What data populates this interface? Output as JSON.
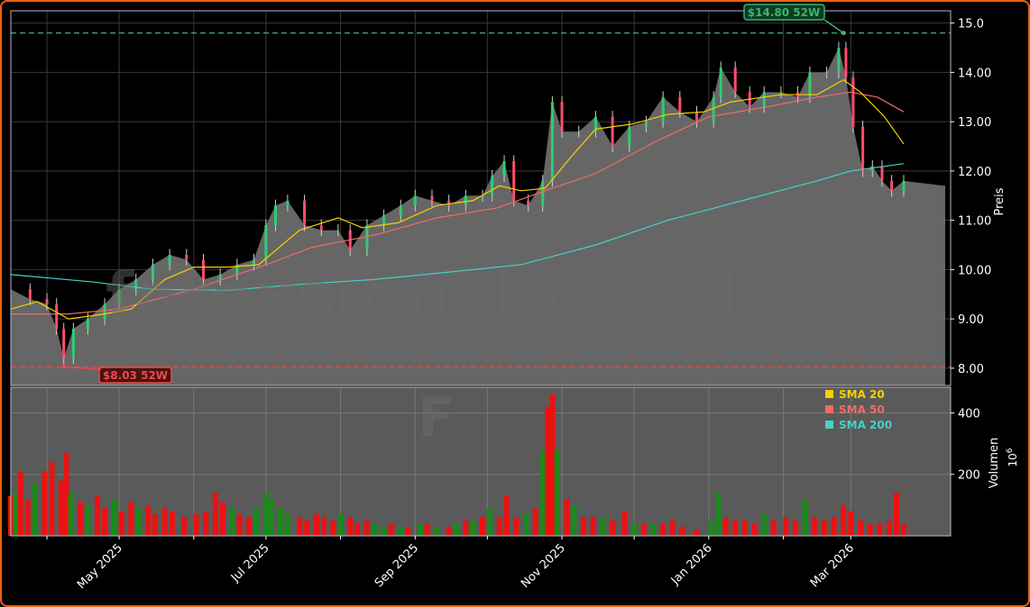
{
  "chart_data": {
    "type": "candlestick",
    "watermark": "forexsignale.trade",
    "watermark_letter": "F",
    "price_axis": {
      "label": "Preis",
      "ylim": [
        7.65,
        15.25
      ],
      "ticks": [
        8.0,
        9.0,
        10.0,
        11.0,
        12.0,
        13.0,
        14.0,
        15.0
      ],
      "tick_labels": [
        "8.00",
        "9.00",
        "10.00",
        "11.00",
        "12.00",
        "13.00",
        "14.00",
        "15.0"
      ]
    },
    "volume_axis": {
      "label": "Volumen",
      "exponent": "10",
      "exponent_power": "6",
      "ylim": [
        0,
        460
      ],
      "ticks": [
        200,
        400
      ],
      "tick_labels": [
        "200",
        "400"
      ]
    },
    "x_axis": {
      "start": "2025-03-17",
      "end": "2026-03-23",
      "ticks": [
        {
          "date": "2025-05-01",
          "label": "May 2025"
        },
        {
          "date": "2025-07-01",
          "label": "Jul 2025"
        },
        {
          "date": "2025-09-01",
          "label": "Sep 2025"
        },
        {
          "date": "2025-11-01",
          "label": "Nov 2025"
        },
        {
          "date": "2026-01-01",
          "label": "Jan 2026"
        },
        {
          "date": "2026-03-01",
          "label": "Mar 2026"
        }
      ],
      "minor_ticks": [
        "2025-04-01",
        "2025-06-01",
        "2025-08-01",
        "2025-10-01",
        "2025-12-01",
        "2026-02-01"
      ]
    },
    "high_52w": {
      "value": 14.8,
      "date": "2026-02-26",
      "label": "$14.80 52W",
      "color": "#3cb371"
    },
    "low_52w": {
      "value": 8.03,
      "date": "2025-04-08",
      "label": "$8.03 52W",
      "color": "#e74c4c"
    },
    "last_price": 11.7,
    "legend": [
      {
        "label": "SMA 20",
        "color": "#f5d000"
      },
      {
        "label": "SMA 50",
        "color": "#f06a6a"
      },
      {
        "label": "SMA 200",
        "color": "#45d0c8"
      }
    ],
    "close_series": [
      [
        "2025-03-17",
        9.6
      ],
      [
        "2025-03-25",
        9.4
      ],
      [
        "2025-04-01",
        9.3
      ],
      [
        "2025-04-05",
        8.8
      ],
      [
        "2025-04-08",
        8.2
      ],
      [
        "2025-04-12",
        8.8
      ],
      [
        "2025-04-18",
        9.0
      ],
      [
        "2025-04-25",
        9.3
      ],
      [
        "2025-05-01",
        9.6
      ],
      [
        "2025-05-08",
        9.8
      ],
      [
        "2025-05-15",
        10.1
      ],
      [
        "2025-05-22",
        10.3
      ],
      [
        "2025-05-29",
        10.2
      ],
      [
        "2025-06-05",
        9.8
      ],
      [
        "2025-06-12",
        9.9
      ],
      [
        "2025-06-19",
        10.1
      ],
      [
        "2025-06-26",
        10.2
      ],
      [
        "2025-07-01",
        10.9
      ],
      [
        "2025-07-05",
        11.3
      ],
      [
        "2025-07-10",
        11.4
      ],
      [
        "2025-07-17",
        10.9
      ],
      [
        "2025-07-24",
        10.8
      ],
      [
        "2025-07-31",
        10.8
      ],
      [
        "2025-08-05",
        10.4
      ],
      [
        "2025-08-12",
        10.9
      ],
      [
        "2025-08-19",
        11.1
      ],
      [
        "2025-08-26",
        11.3
      ],
      [
        "2025-09-01",
        11.5
      ],
      [
        "2025-09-08",
        11.4
      ],
      [
        "2025-09-15",
        11.3
      ],
      [
        "2025-09-22",
        11.5
      ],
      [
        "2025-09-29",
        11.5
      ],
      [
        "2025-10-03",
        11.9
      ],
      [
        "2025-10-08",
        12.2
      ],
      [
        "2025-10-12",
        11.4
      ],
      [
        "2025-10-18",
        11.3
      ],
      [
        "2025-10-24",
        11.8
      ],
      [
        "2025-10-28",
        13.4
      ],
      [
        "2025-11-01",
        12.8
      ],
      [
        "2025-11-08",
        12.8
      ],
      [
        "2025-11-15",
        13.1
      ],
      [
        "2025-11-22",
        12.5
      ],
      [
        "2025-11-29",
        12.9
      ],
      [
        "2025-12-06",
        13.0
      ],
      [
        "2025-12-13",
        13.5
      ],
      [
        "2025-12-20",
        13.2
      ],
      [
        "2025-12-27",
        13.0
      ],
      [
        "2026-01-03",
        13.5
      ],
      [
        "2026-01-06",
        14.1
      ],
      [
        "2026-01-12",
        13.6
      ],
      [
        "2026-01-18",
        13.3
      ],
      [
        "2026-01-24",
        13.6
      ],
      [
        "2026-01-31",
        13.6
      ],
      [
        "2026-02-07",
        13.5
      ],
      [
        "2026-02-12",
        14.0
      ],
      [
        "2026-02-19",
        14.0
      ],
      [
        "2026-02-24",
        14.5
      ],
      [
        "2026-02-27",
        13.9
      ],
      [
        "2026-03-02",
        12.9
      ],
      [
        "2026-03-06",
        12.0
      ],
      [
        "2026-03-10",
        12.1
      ],
      [
        "2026-03-14",
        11.8
      ],
      [
        "2026-03-18",
        11.6
      ],
      [
        "2026-03-23",
        11.8
      ]
    ],
    "sma20": [
      [
        "2025-03-17",
        9.2
      ],
      [
        "2025-03-28",
        9.35
      ],
      [
        "2025-04-10",
        9.0
      ],
      [
        "2025-04-25",
        9.1
      ],
      [
        "2025-05-06",
        9.2
      ],
      [
        "2025-05-20",
        9.8
      ],
      [
        "2025-06-01",
        10.05
      ],
      [
        "2025-06-15",
        10.05
      ],
      [
        "2025-06-28",
        10.1
      ],
      [
        "2025-07-15",
        10.8
      ],
      [
        "2025-07-31",
        11.05
      ],
      [
        "2025-08-10",
        10.85
      ],
      [
        "2025-08-25",
        10.95
      ],
      [
        "2025-09-10",
        11.3
      ],
      [
        "2025-09-25",
        11.4
      ],
      [
        "2025-10-06",
        11.7
      ],
      [
        "2025-10-15",
        11.6
      ],
      [
        "2025-10-25",
        11.65
      ],
      [
        "2025-11-05",
        12.3
      ],
      [
        "2025-11-15",
        12.85
      ],
      [
        "2025-11-30",
        12.95
      ],
      [
        "2025-12-15",
        13.15
      ],
      [
        "2025-12-30",
        13.2
      ],
      [
        "2026-01-10",
        13.4
      ],
      [
        "2026-01-31",
        13.55
      ],
      [
        "2026-02-15",
        13.55
      ],
      [
        "2026-02-26",
        13.85
      ],
      [
        "2026-03-05",
        13.6
      ],
      [
        "2026-03-15",
        13.1
      ],
      [
        "2026-03-23",
        12.55
      ]
    ],
    "sma50": [
      [
        "2025-03-17",
        9.1
      ],
      [
        "2025-04-10",
        9.1
      ],
      [
        "2025-05-01",
        9.2
      ],
      [
        "2025-06-01",
        9.6
      ],
      [
        "2025-07-01",
        10.1
      ],
      [
        "2025-07-20",
        10.45
      ],
      [
        "2025-08-15",
        10.7
      ],
      [
        "2025-09-10",
        11.05
      ],
      [
        "2025-10-05",
        11.25
      ],
      [
        "2025-10-25",
        11.6
      ],
      [
        "2025-11-15",
        11.95
      ],
      [
        "2025-12-10",
        12.6
      ],
      [
        "2026-01-01",
        13.1
      ],
      [
        "2026-01-25",
        13.3
      ],
      [
        "2026-02-15",
        13.5
      ],
      [
        "2026-03-01",
        13.6
      ],
      [
        "2026-03-12",
        13.5
      ],
      [
        "2026-03-23",
        13.2
      ]
    ],
    "sma200": [
      [
        "2025-03-17",
        9.9
      ],
      [
        "2025-04-20",
        9.75
      ],
      [
        "2025-05-15",
        9.6
      ],
      [
        "2025-06-15",
        9.58
      ],
      [
        "2025-07-15",
        9.7
      ],
      [
        "2025-08-15",
        9.8
      ],
      [
        "2025-09-15",
        9.95
      ],
      [
        "2025-10-15",
        10.1
      ],
      [
        "2025-11-15",
        10.5
      ],
      [
        "2025-12-15",
        11.0
      ],
      [
        "2026-01-15",
        11.4
      ],
      [
        "2026-02-15",
        11.8
      ],
      [
        "2026-03-01",
        12.0
      ],
      [
        "2026-03-23",
        12.15
      ]
    ],
    "volume": {
      "up_color": "#1a8a1a",
      "down_color": "#ee1111",
      "bars": [
        [
          "2025-03-17",
          130,
          "down"
        ],
        [
          "2025-03-19",
          140,
          "up"
        ],
        [
          "2025-03-21",
          210,
          "down"
        ],
        [
          "2025-03-24",
          120,
          "down"
        ],
        [
          "2025-03-27",
          170,
          "up"
        ],
        [
          "2025-03-31",
          210,
          "down"
        ],
        [
          "2025-04-03",
          240,
          "down"
        ],
        [
          "2025-04-07",
          180,
          "down"
        ],
        [
          "2025-04-09",
          270,
          "down"
        ],
        [
          "2025-04-11",
          140,
          "up"
        ],
        [
          "2025-04-15",
          110,
          "down"
        ],
        [
          "2025-04-18",
          100,
          "up"
        ],
        [
          "2025-04-22",
          130,
          "down"
        ],
        [
          "2025-04-25",
          90,
          "down"
        ],
        [
          "2025-04-29",
          120,
          "up"
        ],
        [
          "2025-05-02",
          80,
          "down"
        ],
        [
          "2025-05-06",
          110,
          "down"
        ],
        [
          "2025-05-09",
          90,
          "up"
        ],
        [
          "2025-05-13",
          100,
          "down"
        ],
        [
          "2025-05-16",
          70,
          "down"
        ],
        [
          "2025-05-20",
          90,
          "down"
        ],
        [
          "2025-05-23",
          80,
          "down"
        ],
        [
          "2025-05-28",
          60,
          "down"
        ],
        [
          "2025-06-02",
          70,
          "down"
        ],
        [
          "2025-06-06",
          80,
          "down"
        ],
        [
          "2025-06-10",
          140,
          "down"
        ],
        [
          "2025-06-13",
          110,
          "down"
        ],
        [
          "2025-06-17",
          90,
          "up"
        ],
        [
          "2025-06-20",
          70,
          "down"
        ],
        [
          "2025-06-24",
          60,
          "down"
        ],
        [
          "2025-06-27",
          90,
          "up"
        ],
        [
          "2025-07-01",
          140,
          "up"
        ],
        [
          "2025-07-03",
          120,
          "up"
        ],
        [
          "2025-07-07",
          90,
          "up"
        ],
        [
          "2025-07-10",
          70,
          "up"
        ],
        [
          "2025-07-15",
          60,
          "down"
        ],
        [
          "2025-07-18",
          50,
          "down"
        ],
        [
          "2025-07-22",
          70,
          "down"
        ],
        [
          "2025-07-25",
          60,
          "down"
        ],
        [
          "2025-07-29",
          50,
          "down"
        ],
        [
          "2025-08-01",
          70,
          "up"
        ],
        [
          "2025-08-05",
          60,
          "down"
        ],
        [
          "2025-08-08",
          40,
          "down"
        ],
        [
          "2025-08-12",
          50,
          "down"
        ],
        [
          "2025-08-15",
          40,
          "up"
        ],
        [
          "2025-08-19",
          30,
          "up"
        ],
        [
          "2025-08-22",
          40,
          "down"
        ],
        [
          "2025-08-26",
          30,
          "up"
        ],
        [
          "2025-08-29",
          30,
          "down"
        ],
        [
          "2025-09-03",
          40,
          "up"
        ],
        [
          "2025-09-06",
          40,
          "down"
        ],
        [
          "2025-09-10",
          30,
          "up"
        ],
        [
          "2025-09-15",
          30,
          "down"
        ],
        [
          "2025-09-18",
          40,
          "up"
        ],
        [
          "2025-09-22",
          50,
          "down"
        ],
        [
          "2025-09-25",
          50,
          "up"
        ],
        [
          "2025-09-29",
          60,
          "down"
        ],
        [
          "2025-10-02",
          90,
          "up"
        ],
        [
          "2025-10-06",
          60,
          "down"
        ],
        [
          "2025-10-09",
          130,
          "down"
        ],
        [
          "2025-10-13",
          60,
          "down"
        ],
        [
          "2025-10-17",
          70,
          "up"
        ],
        [
          "2025-10-21",
          90,
          "down"
        ],
        [
          "2025-10-24",
          280,
          "up"
        ],
        [
          "2025-10-26",
          420,
          "down"
        ],
        [
          "2025-10-28",
          460,
          "down"
        ],
        [
          "2025-10-30",
          280,
          "up"
        ],
        [
          "2025-11-03",
          120,
          "down"
        ],
        [
          "2025-11-06",
          100,
          "up"
        ],
        [
          "2025-11-10",
          60,
          "down"
        ],
        [
          "2025-11-14",
          60,
          "down"
        ],
        [
          "2025-11-18",
          60,
          "up"
        ],
        [
          "2025-11-22",
          50,
          "down"
        ],
        [
          "2025-11-27",
          80,
          "down"
        ],
        [
          "2025-12-01",
          40,
          "up"
        ],
        [
          "2025-12-05",
          40,
          "down"
        ],
        [
          "2025-12-09",
          40,
          "up"
        ],
        [
          "2025-12-13",
          40,
          "down"
        ],
        [
          "2025-12-17",
          50,
          "down"
        ],
        [
          "2025-12-21",
          30,
          "down"
        ],
        [
          "2025-12-27",
          20,
          "down"
        ],
        [
          "2026-01-02",
          50,
          "up"
        ],
        [
          "2026-01-05",
          140,
          "up"
        ],
        [
          "2026-01-08",
          60,
          "down"
        ],
        [
          "2026-01-12",
          50,
          "down"
        ],
        [
          "2026-01-16",
          50,
          "down"
        ],
        [
          "2026-01-20",
          40,
          "down"
        ],
        [
          "2026-01-24",
          70,
          "up"
        ],
        [
          "2026-01-28",
          50,
          "down"
        ],
        [
          "2026-02-02",
          60,
          "down"
        ],
        [
          "2026-02-06",
          50,
          "down"
        ],
        [
          "2026-02-10",
          120,
          "up"
        ],
        [
          "2026-02-14",
          60,
          "down"
        ],
        [
          "2026-02-18",
          50,
          "down"
        ],
        [
          "2026-02-22",
          60,
          "down"
        ],
        [
          "2026-02-26",
          100,
          "down"
        ],
        [
          "2026-03-01",
          80,
          "down"
        ],
        [
          "2026-03-05",
          50,
          "down"
        ],
        [
          "2026-03-09",
          40,
          "down"
        ],
        [
          "2026-03-13",
          40,
          "down"
        ],
        [
          "2026-03-17",
          50,
          "down"
        ],
        [
          "2026-03-20",
          140,
          "down"
        ],
        [
          "2026-03-23",
          40,
          "down"
        ]
      ]
    }
  }
}
